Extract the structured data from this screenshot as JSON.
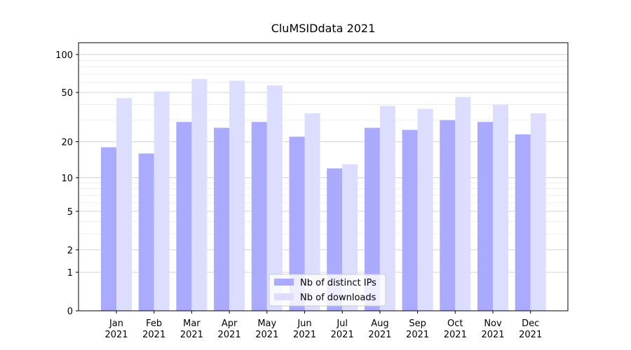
{
  "chart_data": {
    "type": "bar",
    "title": "CluMSIDdata 2021",
    "categories": [
      "Jan 2021",
      "Feb 2021",
      "Mar 2021",
      "Apr 2021",
      "May 2021",
      "Jun 2021",
      "Jul 2021",
      "Aug 2021",
      "Sep 2021",
      "Oct 2021",
      "Nov 2021",
      "Dec 2021"
    ],
    "series": [
      {
        "name": "Nb of distinct IPs",
        "color": "#aaaaff",
        "values": [
          18,
          16,
          29,
          26,
          29,
          22,
          12,
          26,
          25,
          30,
          29,
          23
        ]
      },
      {
        "name": "Nb of downloads",
        "color": "#ddddff",
        "values": [
          45,
          51,
          64,
          62,
          57,
          34,
          13,
          39,
          37,
          46,
          40,
          34
        ]
      }
    ],
    "yscale": "log1p",
    "ylim": [
      0,
      124
    ],
    "yticks": [
      0,
      1,
      2,
      5,
      10,
      20,
      50,
      100
    ],
    "yminorticks": [
      3,
      4,
      6,
      7,
      8,
      9,
      30,
      40,
      60,
      70,
      80,
      90
    ],
    "grid": true,
    "legend": "lower center"
  }
}
